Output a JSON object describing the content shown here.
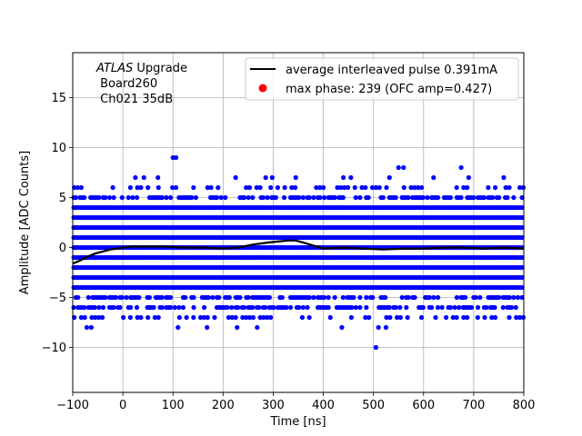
{
  "chart_data": {
    "type": "scatter",
    "title": "",
    "xlabel": "Time [ns]",
    "ylabel": "Amplitude [ADC Counts]",
    "xlim": [
      -100,
      800
    ],
    "ylim": [
      -14.5,
      19.5
    ],
    "xticks": [
      -100,
      0,
      100,
      200,
      300,
      400,
      500,
      600,
      700,
      800
    ],
    "yticks": [
      -10,
      -5,
      0,
      5,
      10,
      15
    ],
    "grid": true,
    "annotation": {
      "italic": "ATLAS",
      "rest": " Upgrade",
      "line2": " Board260",
      "line3": " Ch021 35dB"
    },
    "legend": {
      "placement": "top-right",
      "entries": [
        {
          "label": "average interleaved pulse 0.391mA",
          "kind": "line",
          "color": "#000000"
        },
        {
          "label": "max phase: 239 (OFC amp=0.427)",
          "kind": "marker",
          "color": "#ff0000"
        }
      ]
    },
    "series": [
      {
        "kind": "band",
        "color": "#0000ff",
        "x_range": [
          -100,
          800
        ],
        "dense_levels": [
          -6,
          -5,
          -4,
          -3,
          -2,
          -1,
          0,
          1,
          2,
          3,
          4,
          5
        ],
        "sparse_levels": [
          -7,
          6
        ]
      },
      {
        "kind": "points",
        "color": "#0000ff",
        "points": [
          [
            -72,
            -8
          ],
          [
            -63,
            -8
          ],
          [
            110,
            -8
          ],
          [
            168,
            -8
          ],
          [
            228,
            -8
          ],
          [
            268,
            -8
          ],
          [
            437,
            -8
          ],
          [
            505,
            -10
          ],
          [
            510,
            -8
          ],
          [
            525,
            -8
          ],
          [
            25,
            7
          ],
          [
            42,
            7
          ],
          [
            70,
            7
          ],
          [
            100,
            9
          ],
          [
            106,
            9
          ],
          [
            285,
            7
          ],
          [
            298,
            7
          ],
          [
            345,
            7
          ],
          [
            440,
            7
          ],
          [
            532,
            7
          ],
          [
            550,
            8
          ],
          [
            560,
            8
          ],
          [
            620,
            7
          ],
          [
            675,
            8
          ],
          [
            690,
            7
          ],
          [
            760,
            7
          ],
          [
            225,
            7
          ],
          [
            455,
            7
          ]
        ]
      },
      {
        "kind": "line",
        "color": "#000000",
        "x": [
          -100,
          -85,
          -70,
          -55,
          -40,
          -25,
          -10,
          0,
          20,
          50,
          80,
          120,
          160,
          200,
          230,
          260,
          290,
          310,
          330,
          345,
          360,
          380,
          400,
          440,
          480,
          520,
          560,
          600,
          640,
          680,
          720,
          760,
          800
        ],
        "y": [
          -1.6,
          -1.3,
          -0.9,
          -0.6,
          -0.4,
          -0.2,
          -0.1,
          0.0,
          0.1,
          0.1,
          0.1,
          0.0,
          0.0,
          -0.1,
          0.0,
          0.3,
          0.5,
          0.6,
          0.7,
          0.7,
          0.5,
          0.2,
          -0.1,
          0.0,
          -0.1,
          -0.2,
          -0.1,
          -0.1,
          0.0,
          0.0,
          -0.1,
          0.0,
          -0.1
        ]
      }
    ]
  }
}
